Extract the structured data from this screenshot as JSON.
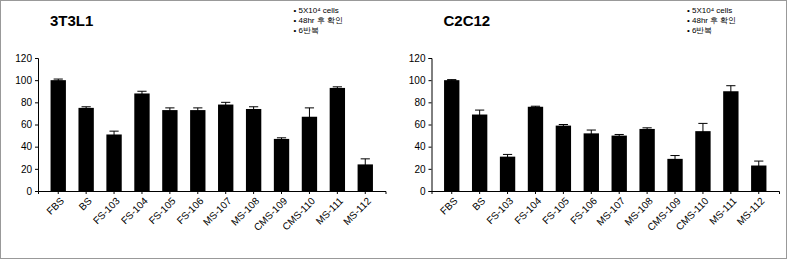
{
  "chart_data": [
    {
      "type": "bar",
      "title": "3T3L1",
      "annotations": [
        "• 5X10⁴ cells",
        "• 48hr 후 확인",
        "• 6반복"
      ],
      "categories": [
        "FBS",
        "BS",
        "FS-103",
        "FS-104",
        "FS-105",
        "FS-106",
        "MS-107",
        "MS-108",
        "CMS-109",
        "CMS-110",
        "MS-111",
        "MS-112"
      ],
      "values": [
        100,
        75,
        51,
        88,
        73,
        73,
        78,
        74,
        47,
        67,
        93,
        24
      ],
      "errors": [
        1,
        1,
        3,
        2,
        2,
        2,
        2,
        2,
        1,
        8,
        1,
        5
      ],
      "color": "#000000",
      "ylim": [
        0,
        120
      ],
      "yticks": [
        0,
        20,
        40,
        60,
        80,
        100,
        120
      ],
      "grid": false
    },
    {
      "type": "bar",
      "title": "C2C12",
      "annotations": [
        "• 5X10⁴ cells",
        "• 48hr 후 확인",
        "• 6반복"
      ],
      "categories": [
        "FBS",
        "BS",
        "FS-103",
        "FS-104",
        "FS-105",
        "FS-106",
        "MS-107",
        "MS-108",
        "CMS-109",
        "CMS-110",
        "MS-111",
        "MS-112"
      ],
      "values": [
        100,
        69,
        31,
        76,
        59,
        52,
        50,
        56,
        29,
        54,
        90,
        23
      ],
      "errors": [
        0.5,
        4,
        2,
        0.5,
        1,
        3,
        1,
        1,
        3,
        7,
        5,
        4
      ],
      "color": "#000000",
      "ylim": [
        0,
        120
      ],
      "yticks": [
        0,
        20,
        40,
        60,
        80,
        100,
        120
      ],
      "grid": false
    }
  ]
}
